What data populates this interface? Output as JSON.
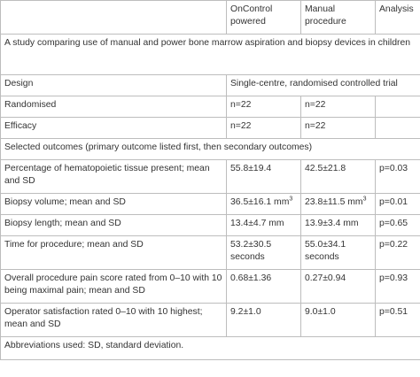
{
  "header": {
    "col1": "",
    "col2": "OnControl powered",
    "col3": "Manual procedure",
    "col4": "Analysis"
  },
  "study_title": "A study comparing use of manual and power bone marrow aspiration and biopsy devices in children",
  "design": {
    "label": "Design",
    "value": "Single-centre, randomised controlled trial"
  },
  "rows_top": [
    {
      "label": "Randomised",
      "oncontrol": "n=22",
      "manual": "n=22",
      "analysis": ""
    },
    {
      "label": "Efficacy",
      "oncontrol": "n=22",
      "manual": "n=22",
      "analysis": ""
    }
  ],
  "selected_outcomes": "Selected outcomes (primary outcome listed first, then secondary outcomes)",
  "outcomes": [
    {
      "label": "Percentage of hematopoietic tissue present; mean and SD",
      "oncontrol": "55.8±19.4",
      "manual": "42.5±21.8",
      "analysis": "p=0.03"
    },
    {
      "label": "Biopsy volume; mean and SD",
      "oncontrol": "36.5±16.1 mm",
      "oncontrol_sup": "3",
      "manual": "23.8±11.5 mm",
      "manual_sup": "3",
      "analysis": "p=0.01"
    },
    {
      "label": "Biopsy length; mean and SD",
      "oncontrol": "13.4±4.7 mm",
      "manual": "13.9±3.4 mm",
      "analysis": "p=0.65"
    },
    {
      "label": "Time for procedure; mean and SD",
      "oncontrol": "53.2±30.5 seconds",
      "manual": "55.0±34.1 seconds",
      "analysis": "p=0.22"
    },
    {
      "label": "Overall procedure pain score rated from 0–10 with 10 being maximal pain; mean and SD",
      "oncontrol": "0.68±1.36",
      "manual": "0.27±0.94",
      "analysis": "p=0.93"
    },
    {
      "label": "Operator satisfaction rated 0–10 with 10 highest; mean and SD",
      "oncontrol": "9.2±1.0",
      "manual": "9.0±1.0",
      "analysis": "p=0.51"
    }
  ],
  "footer": "Abbreviations used: SD, standard deviation."
}
